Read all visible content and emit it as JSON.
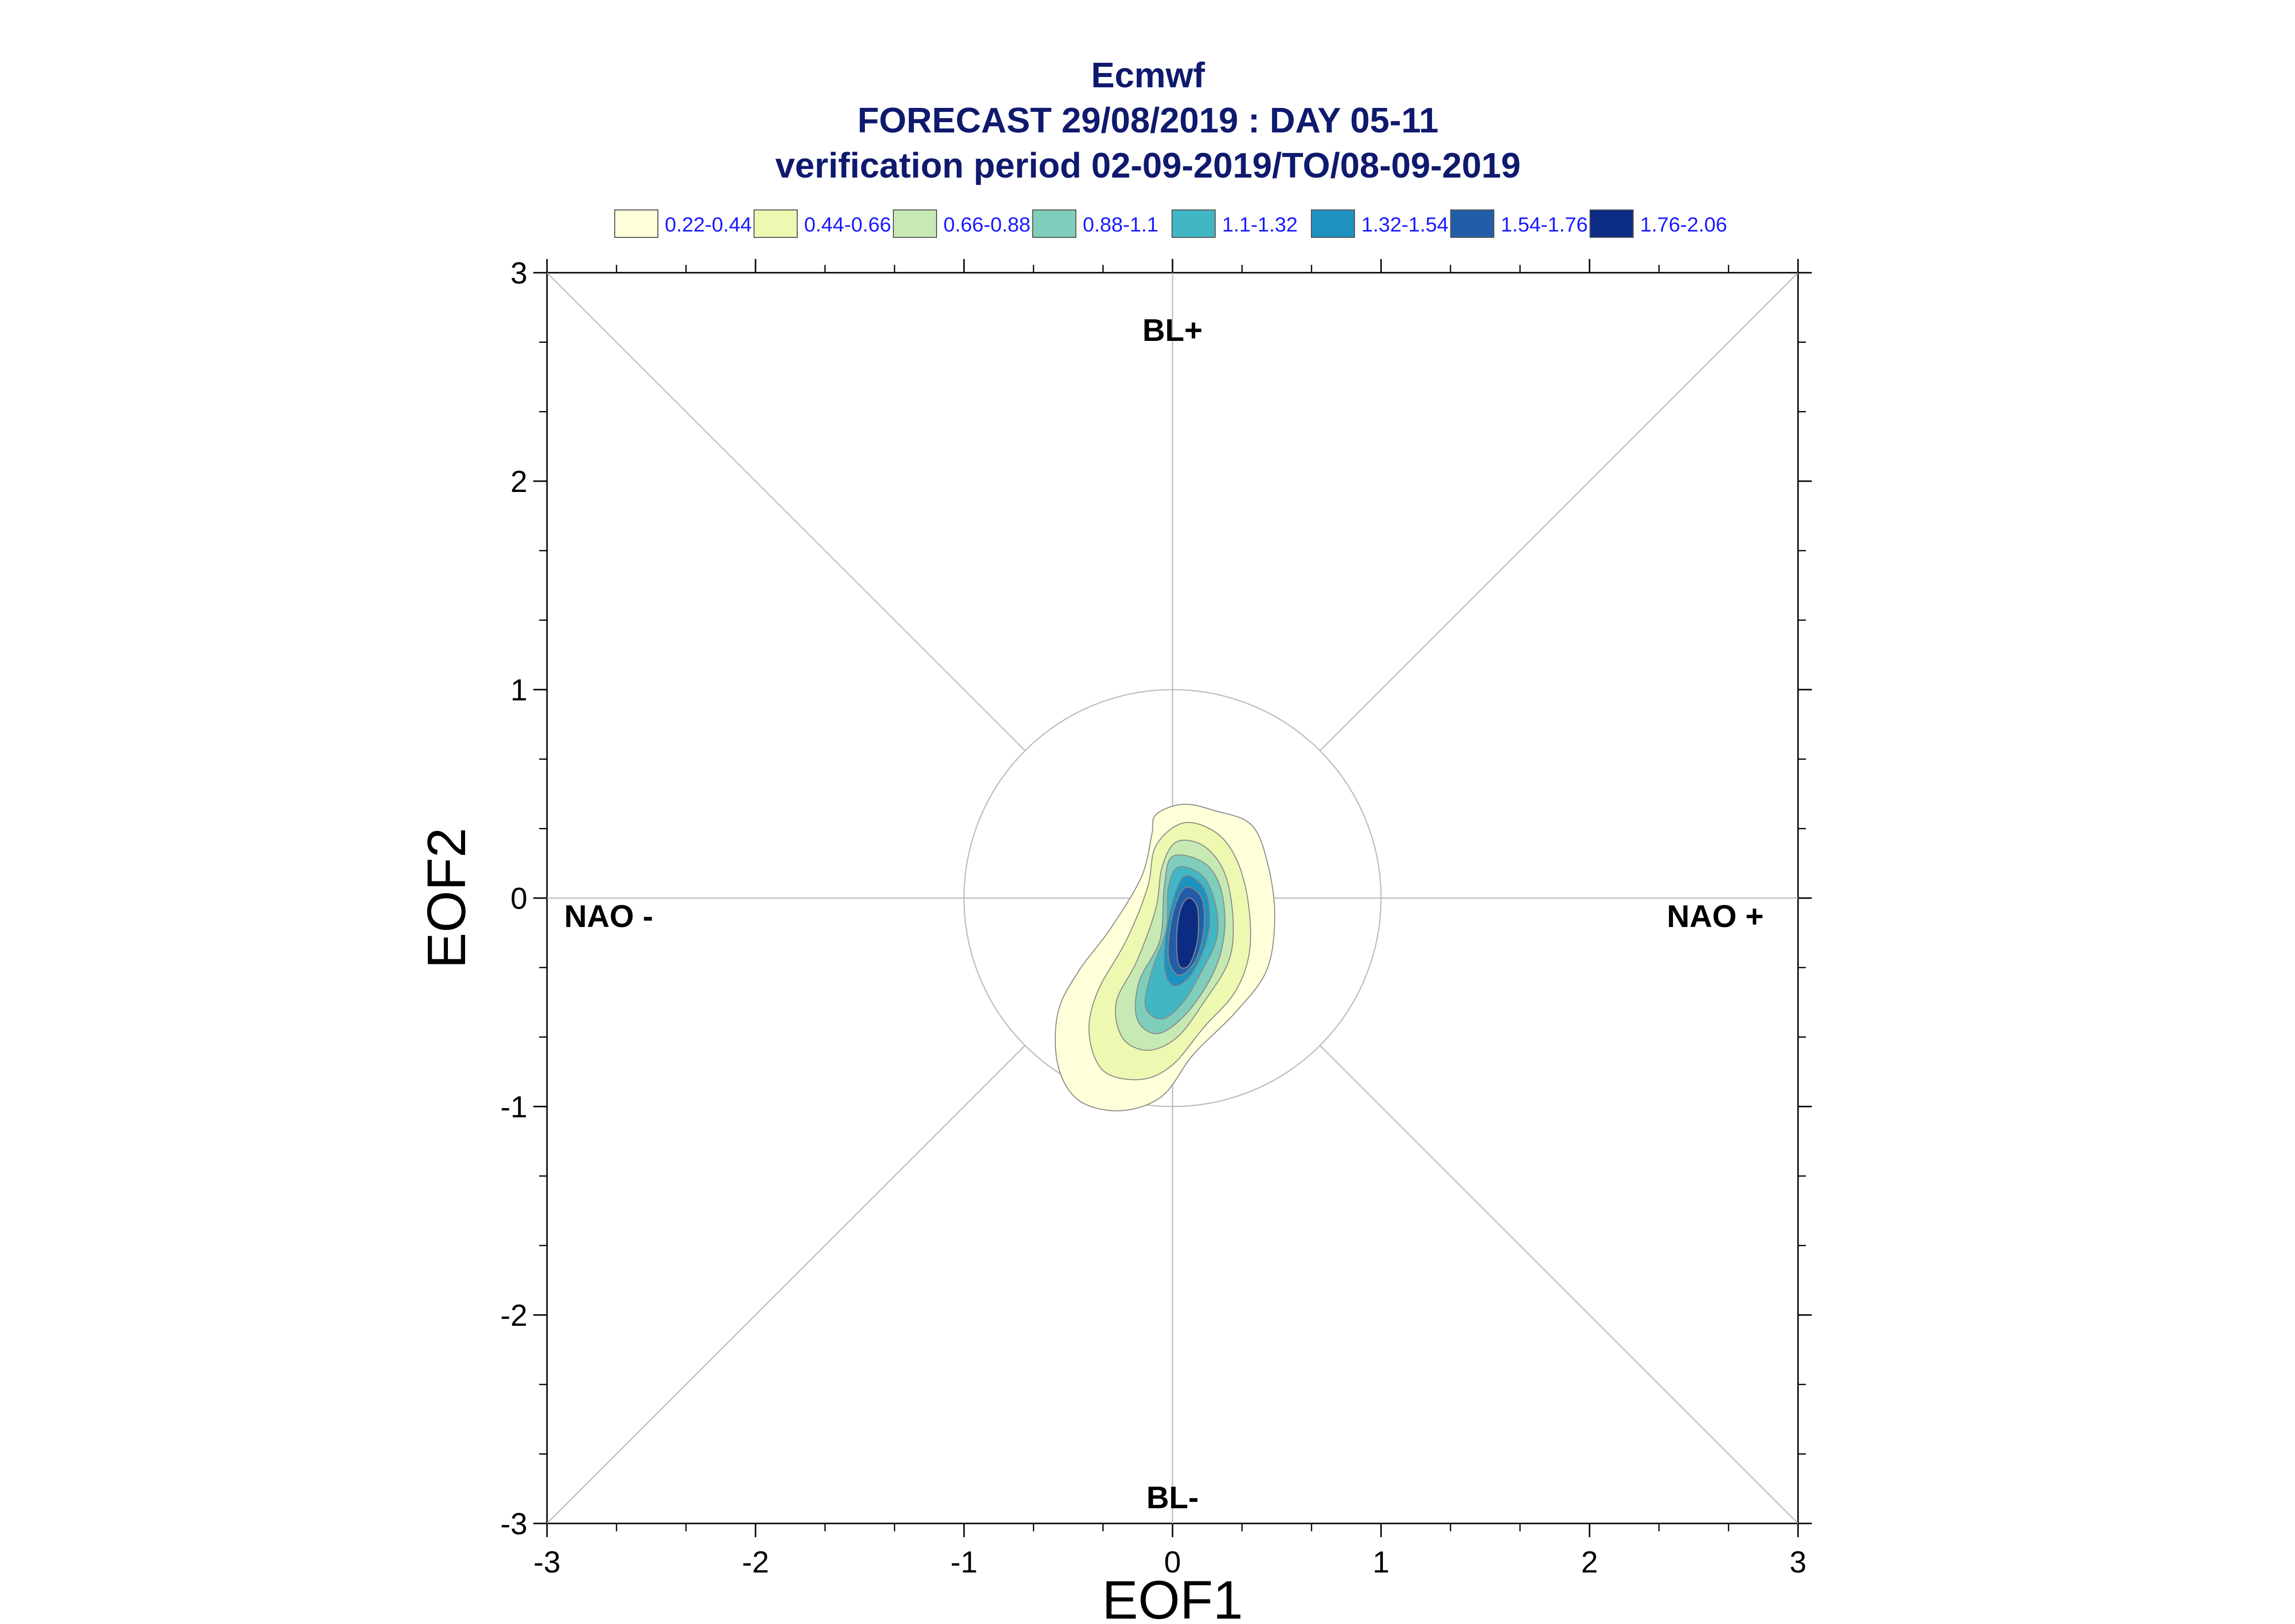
{
  "chart_data": {
    "type": "contour",
    "title": [
      "Ecmwf",
      "FORECAST 29/08/2019 : DAY 05-11",
      "verification period 02-09-2019/TO/08-09-2019"
    ],
    "xlabel": "EOF1",
    "ylabel": "EOF2",
    "xlim": [
      -3,
      3
    ],
    "ylim": [
      -3,
      3
    ],
    "xticks": [
      -3,
      -2,
      -1,
      0,
      1,
      2,
      3
    ],
    "yticks": [
      -3,
      -2,
      -1,
      0,
      1,
      2,
      3
    ],
    "region_labels": {
      "top": "BL+",
      "bottom": "BL-",
      "left": "NAO -",
      "right": "NAO +"
    },
    "reference_circle_radius": 1,
    "legend": [
      {
        "label": "0.22-0.44",
        "color": "#ffffd9"
      },
      {
        "label": "0.44-0.66",
        "color": "#edf8b1"
      },
      {
        "label": "0.66-0.88",
        "color": "#c7e9b4"
      },
      {
        "label": "0.88-1.1",
        "color": "#7fcdbb"
      },
      {
        "label": "1.1-1.32",
        "color": "#41b6c4"
      },
      {
        "label": "1.32-1.54",
        "color": "#1d91c0"
      },
      {
        "label": "1.54-1.76",
        "color": "#225ea8"
      },
      {
        "label": "1.76-2.06",
        "color": "#0c2c84"
      }
    ],
    "density_contours": [
      {
        "level": "0.22-0.44",
        "points": [
          [
            0.05,
            0.45
          ],
          [
            0.2,
            0.42
          ],
          [
            0.38,
            0.35
          ],
          [
            0.46,
            0.15
          ],
          [
            0.49,
            -0.1
          ],
          [
            0.45,
            -0.35
          ],
          [
            0.3,
            -0.55
          ],
          [
            0.1,
            -0.75
          ],
          [
            -0.05,
            -0.95
          ],
          [
            -0.25,
            -1.02
          ],
          [
            -0.45,
            -0.97
          ],
          [
            -0.55,
            -0.8
          ],
          [
            -0.55,
            -0.55
          ],
          [
            -0.45,
            -0.35
          ],
          [
            -0.3,
            -0.15
          ],
          [
            -0.15,
            0.1
          ],
          [
            -0.1,
            0.3
          ],
          [
            -0.08,
            0.4
          ]
        ]
      },
      {
        "level": "0.44-0.66",
        "points": [
          [
            0.05,
            0.36
          ],
          [
            0.2,
            0.32
          ],
          [
            0.3,
            0.2
          ],
          [
            0.36,
            0.0
          ],
          [
            0.37,
            -0.25
          ],
          [
            0.3,
            -0.45
          ],
          [
            0.15,
            -0.62
          ],
          [
            0.0,
            -0.8
          ],
          [
            -0.15,
            -0.87
          ],
          [
            -0.33,
            -0.83
          ],
          [
            -0.4,
            -0.65
          ],
          [
            -0.36,
            -0.45
          ],
          [
            -0.22,
            -0.2
          ],
          [
            -0.12,
            0.05
          ],
          [
            -0.08,
            0.25
          ]
        ]
      },
      {
        "level": "0.66-0.88",
        "points": [
          [
            0.02,
            0.27
          ],
          [
            0.15,
            0.25
          ],
          [
            0.25,
            0.12
          ],
          [
            0.29,
            -0.1
          ],
          [
            0.27,
            -0.3
          ],
          [
            0.15,
            -0.5
          ],
          [
            0.02,
            -0.67
          ],
          [
            -0.12,
            -0.73
          ],
          [
            -0.24,
            -0.67
          ],
          [
            -0.27,
            -0.5
          ],
          [
            -0.17,
            -0.3
          ],
          [
            -0.08,
            -0.05
          ],
          [
            -0.05,
            0.15
          ]
        ]
      },
      {
        "level": "0.88-1.1",
        "points": [
          [
            0.0,
            0.2
          ],
          [
            0.15,
            0.17
          ],
          [
            0.23,
            0.05
          ],
          [
            0.25,
            -0.15
          ],
          [
            0.2,
            -0.35
          ],
          [
            0.07,
            -0.55
          ],
          [
            -0.07,
            -0.65
          ],
          [
            -0.17,
            -0.58
          ],
          [
            -0.16,
            -0.4
          ],
          [
            -0.06,
            -0.2
          ],
          [
            -0.04,
            0.05
          ]
        ]
      },
      {
        "level": "1.1-1.32",
        "points": [
          [
            0.03,
            0.15
          ],
          [
            0.15,
            0.1
          ],
          [
            0.21,
            -0.05
          ],
          [
            0.21,
            -0.2
          ],
          [
            0.14,
            -0.35
          ],
          [
            0.05,
            -0.5
          ],
          [
            -0.05,
            -0.58
          ],
          [
            -0.13,
            -0.52
          ],
          [
            -0.1,
            -0.35
          ],
          [
            -0.03,
            -0.15
          ],
          [
            -0.02,
            0.05
          ]
        ]
      },
      {
        "level": "1.32-1.54",
        "points": [
          [
            0.05,
            0.1
          ],
          [
            0.15,
            0.05
          ],
          [
            0.18,
            -0.1
          ],
          [
            0.15,
            -0.25
          ],
          [
            0.08,
            -0.38
          ],
          [
            0.0,
            -0.42
          ],
          [
            -0.04,
            -0.32
          ],
          [
            -0.02,
            -0.1
          ]
        ]
      },
      {
        "level": "1.54-1.76",
        "points": [
          [
            0.06,
            0.05
          ],
          [
            0.14,
            0.0
          ],
          [
            0.15,
            -0.15
          ],
          [
            0.11,
            -0.3
          ],
          [
            0.03,
            -0.37
          ],
          [
            -0.02,
            -0.28
          ],
          [
            0.0,
            -0.08
          ]
        ]
      },
      {
        "level": "1.76-2.06",
        "points": [
          [
            0.08,
            0.0
          ],
          [
            0.12,
            -0.05
          ],
          [
            0.12,
            -0.2
          ],
          [
            0.08,
            -0.32
          ],
          [
            0.03,
            -0.32
          ],
          [
            0.02,
            -0.18
          ],
          [
            0.04,
            -0.05
          ]
        ]
      }
    ]
  }
}
